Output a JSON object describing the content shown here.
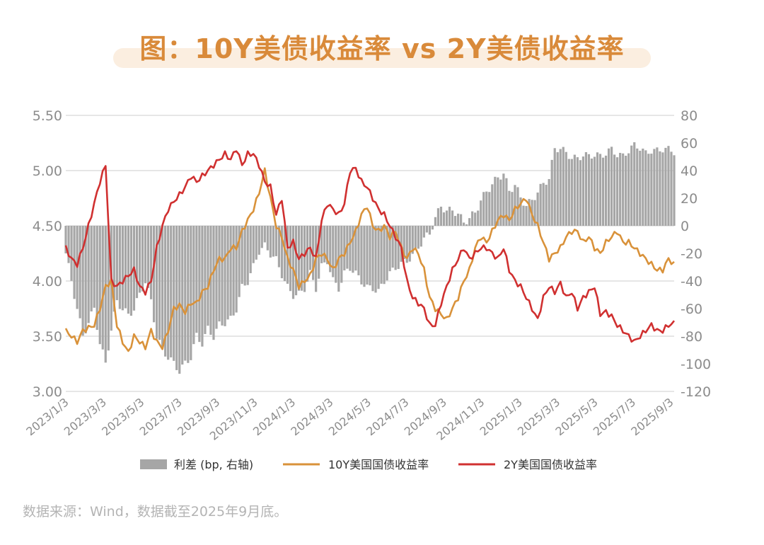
{
  "title": "图：10Y美债收益率 vs 2Y美债收益率",
  "source": "数据来源：Wind，数据截至2025年9月底。",
  "colors": {
    "spread": "#a6a6a6",
    "y10": "#d9923a",
    "y2": "#d03030",
    "grid": "#d8d8d8",
    "axis": "#8c8c8c"
  },
  "chart_data": {
    "type": "line+bar",
    "left_axis": {
      "ylim": [
        3.0,
        5.5
      ],
      "ticks": [
        "3.00",
        "3.50",
        "4.00",
        "4.50",
        "5.00",
        "5.50"
      ]
    },
    "right_axis": {
      "ylim": [
        -120,
        80
      ],
      "ticks": [
        "-120",
        "-100",
        "-80",
        "-60",
        "-40",
        "-20",
        "0",
        "20",
        "40",
        "60",
        "80"
      ]
    },
    "x_ticks": [
      "2023/1/3",
      "2023/3/3",
      "2023/5/3",
      "2023/7/3",
      "2023/9/3",
      "2023/11/3",
      "2024/1/3",
      "2024/3/3",
      "2024/5/3",
      "2024/7/3",
      "2024/9/3",
      "2024/11/3",
      "2025/1/3",
      "2025/3/3",
      "2025/5/3",
      "2025/7/3",
      "2025/9/3"
    ],
    "legend": [
      {
        "key": "spread",
        "label": "利差 (bp, 右轴)",
        "kind": "bar"
      },
      {
        "key": "y10",
        "label": "10Y美国国债收益率",
        "kind": "line"
      },
      {
        "key": "y2",
        "label": "2Y美国国债收益率",
        "kind": "line"
      }
    ],
    "y10": [
      [
        0,
        3.55
      ],
      [
        2,
        3.45
      ],
      [
        3,
        3.55
      ],
      [
        5,
        3.6
      ],
      [
        6,
        3.75
      ],
      [
        7,
        3.95
      ],
      [
        8,
        4.0
      ],
      [
        9,
        3.6
      ],
      [
        10,
        3.45
      ],
      [
        11,
        3.35
      ],
      [
        12,
        3.5
      ],
      [
        13,
        3.45
      ],
      [
        14,
        3.4
      ],
      [
        15,
        3.55
      ],
      [
        16,
        3.45
      ],
      [
        17,
        3.4
      ],
      [
        18,
        3.55
      ],
      [
        19,
        3.75
      ],
      [
        20,
        3.78
      ],
      [
        21,
        3.72
      ],
      [
        22,
        3.8
      ],
      [
        23,
        3.8
      ],
      [
        24,
        3.9
      ],
      [
        25,
        3.95
      ],
      [
        26,
        4.1
      ],
      [
        27,
        4.2
      ],
      [
        28,
        4.2
      ],
      [
        29,
        4.3
      ],
      [
        30,
        4.3
      ],
      [
        31,
        4.45
      ],
      [
        32,
        4.55
      ],
      [
        33,
        4.65
      ],
      [
        34,
        4.8
      ],
      [
        35,
        5.0
      ],
      [
        36,
        4.75
      ],
      [
        37,
        4.5
      ],
      [
        38,
        4.4
      ],
      [
        39,
        4.2
      ],
      [
        40,
        4.1
      ],
      [
        41,
        3.95
      ],
      [
        42,
        4.0
      ],
      [
        43,
        4.05
      ],
      [
        44,
        4.2
      ],
      [
        45,
        4.25
      ],
      [
        46,
        4.2
      ],
      [
        47,
        4.1
      ],
      [
        48,
        4.2
      ],
      [
        49,
        4.25
      ],
      [
        50,
        4.35
      ],
      [
        51,
        4.45
      ],
      [
        52,
        4.6
      ],
      [
        53,
        4.68
      ],
      [
        54,
        4.5
      ],
      [
        55,
        4.45
      ],
      [
        56,
        4.5
      ],
      [
        57,
        4.4
      ],
      [
        58,
        4.45
      ],
      [
        59,
        4.3
      ],
      [
        60,
        4.2
      ],
      [
        61,
        4.3
      ],
      [
        62,
        4.25
      ],
      [
        63,
        4.1
      ],
      [
        64,
        3.85
      ],
      [
        65,
        3.75
      ],
      [
        66,
        3.7
      ],
      [
        67,
        3.65
      ],
      [
        68,
        3.75
      ],
      [
        69,
        3.85
      ],
      [
        70,
        4.0
      ],
      [
        71,
        4.1
      ],
      [
        72,
        4.3
      ],
      [
        73,
        4.4
      ],
      [
        74,
        4.35
      ],
      [
        75,
        4.45
      ],
      [
        76,
        4.55
      ],
      [
        77,
        4.6
      ],
      [
        78,
        4.55
      ],
      [
        79,
        4.65
      ],
      [
        80,
        4.7
      ],
      [
        81,
        4.75
      ],
      [
        82,
        4.6
      ],
      [
        83,
        4.5
      ],
      [
        84,
        4.35
      ],
      [
        85,
        4.2
      ],
      [
        86,
        4.25
      ],
      [
        87,
        4.3
      ],
      [
        88,
        4.4
      ],
      [
        89,
        4.45
      ],
      [
        90,
        4.45
      ],
      [
        91,
        4.35
      ],
      [
        92,
        4.4
      ],
      [
        93,
        4.3
      ],
      [
        94,
        4.25
      ],
      [
        95,
        4.35
      ],
      [
        96,
        4.4
      ],
      [
        97,
        4.45
      ],
      [
        98,
        4.35
      ],
      [
        99,
        4.35
      ],
      [
        100,
        4.3
      ],
      [
        101,
        4.25
      ],
      [
        102,
        4.2
      ],
      [
        103,
        4.15
      ],
      [
        104,
        4.1
      ],
      [
        105,
        4.1
      ],
      [
        106,
        4.2
      ],
      [
        107,
        4.15
      ]
    ],
    "y2": [
      [
        0,
        4.3
      ],
      [
        1,
        4.2
      ],
      [
        2,
        4.15
      ],
      [
        3,
        4.3
      ],
      [
        4,
        4.5
      ],
      [
        5,
        4.7
      ],
      [
        6,
        4.9
      ],
      [
        7,
        5.05
      ],
      [
        8,
        4.0
      ],
      [
        9,
        3.95
      ],
      [
        10,
        4.0
      ],
      [
        11,
        4.05
      ],
      [
        12,
        4.1
      ],
      [
        13,
        3.95
      ],
      [
        14,
        3.9
      ],
      [
        15,
        4.0
      ],
      [
        16,
        4.3
      ],
      [
        17,
        4.5
      ],
      [
        18,
        4.65
      ],
      [
        19,
        4.72
      ],
      [
        20,
        4.78
      ],
      [
        21,
        4.85
      ],
      [
        22,
        4.95
      ],
      [
        23,
        4.9
      ],
      [
        24,
        4.95
      ],
      [
        25,
        5.0
      ],
      [
        26,
        5.05
      ],
      [
        27,
        5.1
      ],
      [
        28,
        5.15
      ],
      [
        29,
        5.1
      ],
      [
        30,
        5.2
      ],
      [
        31,
        5.05
      ],
      [
        32,
        5.15
      ],
      [
        33,
        5.15
      ],
      [
        34,
        5.05
      ],
      [
        35,
        4.9
      ],
      [
        36,
        4.85
      ],
      [
        37,
        4.6
      ],
      [
        38,
        4.75
      ],
      [
        39,
        4.3
      ],
      [
        40,
        4.35
      ],
      [
        41,
        4.2
      ],
      [
        42,
        4.25
      ],
      [
        43,
        4.3
      ],
      [
        44,
        4.2
      ],
      [
        45,
        4.55
      ],
      [
        46,
        4.7
      ],
      [
        47,
        4.65
      ],
      [
        48,
        4.6
      ],
      [
        49,
        4.7
      ],
      [
        50,
        5.0
      ],
      [
        51,
        5.02
      ],
      [
        52,
        4.9
      ],
      [
        53,
        4.85
      ],
      [
        54,
        4.75
      ],
      [
        55,
        4.65
      ],
      [
        56,
        4.6
      ],
      [
        57,
        4.5
      ],
      [
        58,
        4.4
      ],
      [
        59,
        4.3
      ],
      [
        60,
        4.0
      ],
      [
        61,
        3.85
      ],
      [
        62,
        3.8
      ],
      [
        63,
        3.75
      ],
      [
        64,
        3.6
      ],
      [
        65,
        3.6
      ],
      [
        66,
        3.8
      ],
      [
        67,
        3.95
      ],
      [
        68,
        4.1
      ],
      [
        69,
        4.2
      ],
      [
        70,
        4.3
      ],
      [
        71,
        4.2
      ],
      [
        72,
        4.25
      ],
      [
        73,
        4.3
      ],
      [
        74,
        4.3
      ],
      [
        75,
        4.25
      ],
      [
        76,
        4.2
      ],
      [
        77,
        4.3
      ],
      [
        78,
        4.1
      ],
      [
        79,
        4.0
      ],
      [
        80,
        3.95
      ],
      [
        81,
        3.85
      ],
      [
        82,
        3.75
      ],
      [
        83,
        3.65
      ],
      [
        84,
        3.85
      ],
      [
        85,
        3.95
      ],
      [
        86,
        3.9
      ],
      [
        87,
        3.98
      ],
      [
        88,
        3.85
      ],
      [
        89,
        3.9
      ],
      [
        90,
        3.75
      ],
      [
        91,
        3.85
      ],
      [
        92,
        3.9
      ],
      [
        93,
        3.95
      ],
      [
        94,
        3.7
      ],
      [
        95,
        3.72
      ],
      [
        96,
        3.68
      ],
      [
        97,
        3.6
      ],
      [
        98,
        3.55
      ],
      [
        99,
        3.5
      ],
      [
        100,
        3.45
      ],
      [
        101,
        3.5
      ],
      [
        102,
        3.55
      ],
      [
        103,
        3.6
      ],
      [
        104,
        3.55
      ],
      [
        105,
        3.55
      ],
      [
        106,
        3.6
      ],
      [
        107,
        3.62
      ]
    ],
    "spread": [
      [
        0,
        -20
      ],
      [
        2,
        -60
      ],
      [
        3,
        -80
      ],
      [
        4,
        -70
      ],
      [
        5,
        -60
      ],
      [
        6,
        -85
      ],
      [
        7,
        -100
      ],
      [
        8,
        -75
      ],
      [
        9,
        -55
      ],
      [
        10,
        -60
      ],
      [
        11,
        -65
      ],
      [
        12,
        -60
      ],
      [
        13,
        -50
      ],
      [
        14,
        -40
      ],
      [
        15,
        -55
      ],
      [
        16,
        -80
      ],
      [
        17,
        -90
      ],
      [
        18,
        -95
      ],
      [
        19,
        -100
      ],
      [
        20,
        -105
      ],
      [
        21,
        -100
      ],
      [
        22,
        -95
      ],
      [
        23,
        -80
      ],
      [
        24,
        -85
      ],
      [
        25,
        -75
      ],
      [
        26,
        -80
      ],
      [
        27,
        -72
      ],
      [
        28,
        -70
      ],
      [
        29,
        -68
      ],
      [
        30,
        -60
      ],
      [
        31,
        -45
      ],
      [
        32,
        -40
      ],
      [
        33,
        -30
      ],
      [
        34,
        -18
      ],
      [
        35,
        -15
      ],
      [
        36,
        -20
      ],
      [
        37,
        -25
      ],
      [
        38,
        -35
      ],
      [
        39,
        -45
      ],
      [
        40,
        -50
      ],
      [
        41,
        -50
      ],
      [
        42,
        -45
      ],
      [
        43,
        -35
      ],
      [
        44,
        -45
      ],
      [
        45,
        -30
      ],
      [
        46,
        -25
      ],
      [
        47,
        -40
      ],
      [
        48,
        -45
      ],
      [
        49,
        -35
      ],
      [
        50,
        -30
      ],
      [
        51,
        -35
      ],
      [
        52,
        -40
      ],
      [
        53,
        -45
      ],
      [
        54,
        -45
      ],
      [
        55,
        -48
      ],
      [
        56,
        -40
      ],
      [
        57,
        -35
      ],
      [
        58,
        -30
      ],
      [
        59,
        -28
      ],
      [
        60,
        -25
      ],
      [
        61,
        -22
      ],
      [
        62,
        -15
      ],
      [
        63,
        -10
      ],
      [
        64,
        -5
      ],
      [
        65,
        5
      ],
      [
        66,
        15
      ],
      [
        67,
        10
      ],
      [
        68,
        12
      ],
      [
        69,
        8
      ],
      [
        70,
        3
      ],
      [
        71,
        5
      ],
      [
        72,
        10
      ],
      [
        73,
        18
      ],
      [
        74,
        25
      ],
      [
        75,
        30
      ],
      [
        76,
        35
      ],
      [
        77,
        38
      ],
      [
        78,
        25
      ],
      [
        79,
        30
      ],
      [
        80,
        20
      ],
      [
        81,
        15
      ],
      [
        82,
        18
      ],
      [
        83,
        25
      ],
      [
        84,
        30
      ],
      [
        85,
        35
      ],
      [
        86,
        55
      ],
      [
        87,
        57
      ],
      [
        88,
        52
      ],
      [
        89,
        50
      ],
      [
        90,
        48
      ],
      [
        91,
        52
      ],
      [
        92,
        50
      ],
      [
        93,
        52
      ],
      [
        94,
        50
      ],
      [
        95,
        53
      ],
      [
        96,
        55
      ],
      [
        97,
        52
      ],
      [
        98,
        50
      ],
      [
        99,
        55
      ],
      [
        100,
        58
      ],
      [
        101,
        57
      ],
      [
        102,
        52
      ],
      [
        103,
        55
      ],
      [
        104,
        54
      ],
      [
        105,
        56
      ],
      [
        106,
        55
      ],
      [
        107,
        54
      ]
    ]
  }
}
